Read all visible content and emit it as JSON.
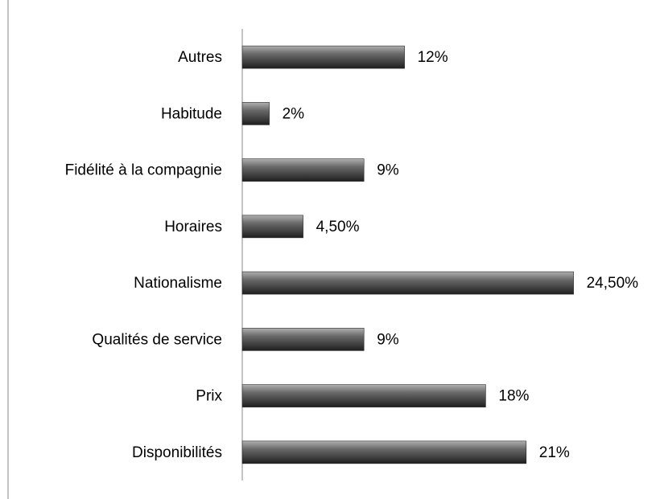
{
  "chart_data": {
    "type": "bar",
    "orientation": "horizontal",
    "categories": [
      "Autres",
      "Habitude",
      "Fidélité à la compagnie",
      "Horaires",
      "Nationalisme",
      "Qualités de service",
      "Prix",
      "Disponibilités"
    ],
    "values": [
      12,
      2,
      9,
      4.5,
      24.5,
      9,
      18,
      21
    ],
    "value_labels": [
      "12%",
      "2%",
      "9%",
      "4,50%",
      "24,50%",
      "9%",
      "18%",
      "21%"
    ],
    "color": "#555555",
    "xlim": [
      0,
      25
    ]
  }
}
